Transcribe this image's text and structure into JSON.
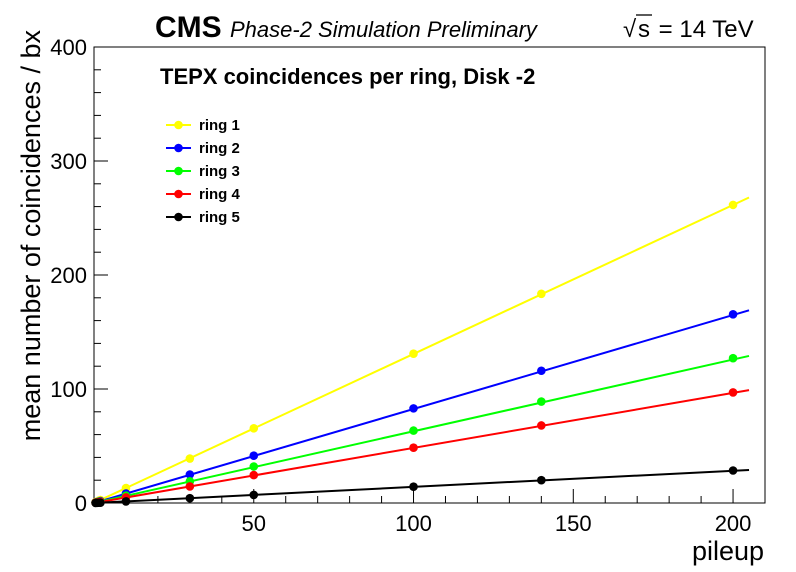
{
  "header": {
    "cms": "CMS",
    "subtitle": "Phase-2 Simulation Preliminary",
    "sqrt_symbol": "√",
    "energy_s": "s",
    "energy_rest": " = 14 TeV"
  },
  "chart_data": {
    "type": "line",
    "title": "TEPX coincidences per ring, Disk -2",
    "xlabel": "pileup",
    "ylabel": "mean number of coincidences / bx",
    "xlim": [
      0,
      210
    ],
    "ylim": [
      0,
      400
    ],
    "x_major_ticks": [
      50,
      100,
      150,
      200
    ],
    "y_major_ticks": [
      0,
      100,
      200,
      300,
      400
    ],
    "grid": false,
    "legend_position": "top-left",
    "x": [
      0.5,
      1,
      1.5,
      2,
      10,
      30,
      50,
      100,
      140,
      200
    ],
    "series": [
      {
        "name": "ring 1",
        "color": "#ffff00",
        "values": [
          0.7,
          1.3,
          2.0,
          2.6,
          13.1,
          39.0,
          65.5,
          131.0,
          183.5,
          261.5
        ],
        "fit_end": 268
      },
      {
        "name": "ring 2",
        "color": "#0000ff",
        "values": [
          0.4,
          0.8,
          1.3,
          1.7,
          8.3,
          25.0,
          41.5,
          83.0,
          116.0,
          165.5
        ],
        "fit_end": 169
      },
      {
        "name": "ring 3",
        "color": "#00ff00",
        "values": [
          0.3,
          0.6,
          1.0,
          1.3,
          6.4,
          19.0,
          32.0,
          63.5,
          89.0,
          127.0
        ],
        "fit_end": 129
      },
      {
        "name": "ring 4",
        "color": "#ff0000",
        "values": [
          0.25,
          0.5,
          0.75,
          1.0,
          4.9,
          14.5,
          24.5,
          48.5,
          68.0,
          97.0
        ],
        "fit_end": 99
      },
      {
        "name": "ring 5",
        "color": "#000000",
        "values": [
          0.07,
          0.14,
          0.21,
          0.28,
          1.4,
          4.2,
          7.1,
          14.3,
          20.0,
          28.5
        ],
        "fit_end": 29
      }
    ]
  }
}
